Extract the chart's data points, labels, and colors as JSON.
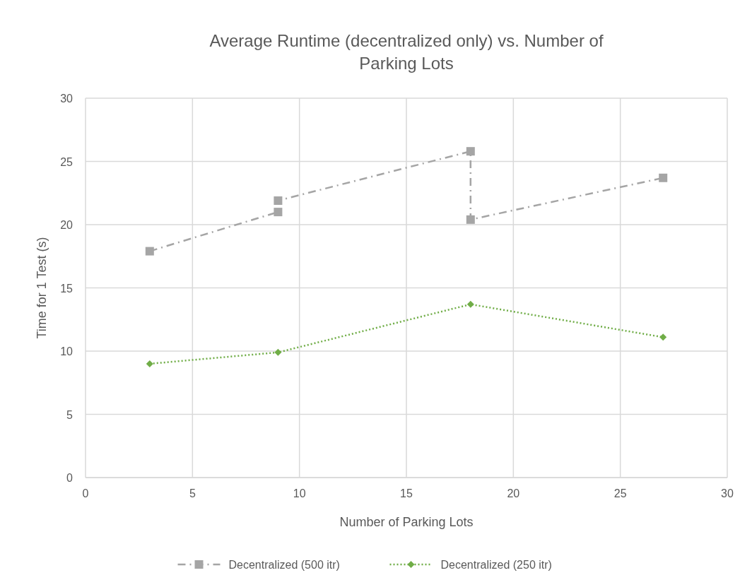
{
  "chart_data": {
    "type": "line",
    "title": "Average Runtime (decentralized only) vs. Number of Parking Lots",
    "xlabel": "Number of Parking Lots",
    "ylabel": "Time for 1 Test (s)",
    "xlim": [
      0,
      30
    ],
    "xticks": [
      0,
      5,
      10,
      15,
      20,
      25,
      30
    ],
    "ylim": [
      0,
      30
    ],
    "yticks": [
      0,
      5,
      10,
      15,
      20,
      25,
      30
    ],
    "grid": true,
    "legend": "bottom",
    "series": [
      {
        "name": "Decentralized (500 itr)",
        "color": "#a5a5a5",
        "marker": "square",
        "line_style": "dashed",
        "x": [
          3,
          9,
          9,
          18,
          18,
          27
        ],
        "values": [
          17.9,
          21.0,
          21.9,
          25.8,
          20.4,
          23.7
        ]
      },
      {
        "name": "Decentralized (250 itr)",
        "color": "#70ad47",
        "marker": "diamond",
        "line_style": "dotted",
        "x": [
          3,
          9,
          18,
          27
        ],
        "values": [
          9.0,
          9.9,
          13.7,
          11.1
        ]
      }
    ]
  }
}
